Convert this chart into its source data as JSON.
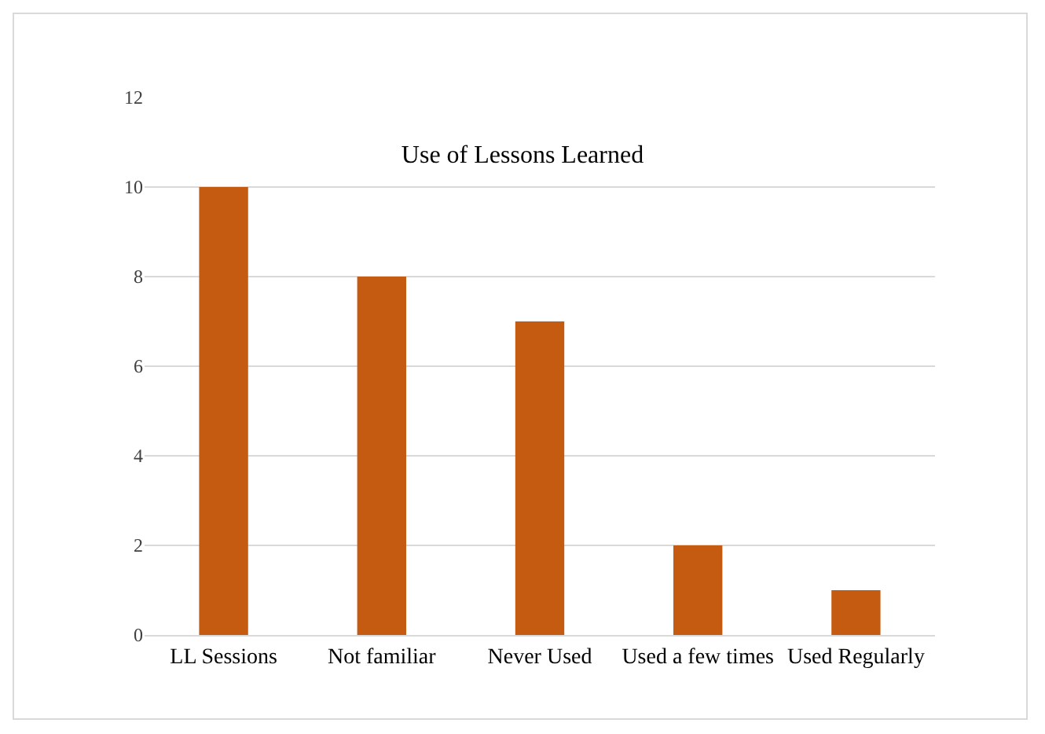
{
  "chart_data": {
    "type": "bar",
    "title": "Use of Lessons Learned",
    "categories": [
      "LL Sessions",
      "Not familiar",
      "Never Used",
      "Used a few times",
      "Used Regularly"
    ],
    "values": [
      10,
      8,
      7,
      2,
      1
    ],
    "color": "#c55a11",
    "ylim": [
      0,
      12
    ],
    "yticks": [
      0,
      2,
      4,
      6,
      8,
      10,
      12
    ],
    "grid": "y"
  }
}
